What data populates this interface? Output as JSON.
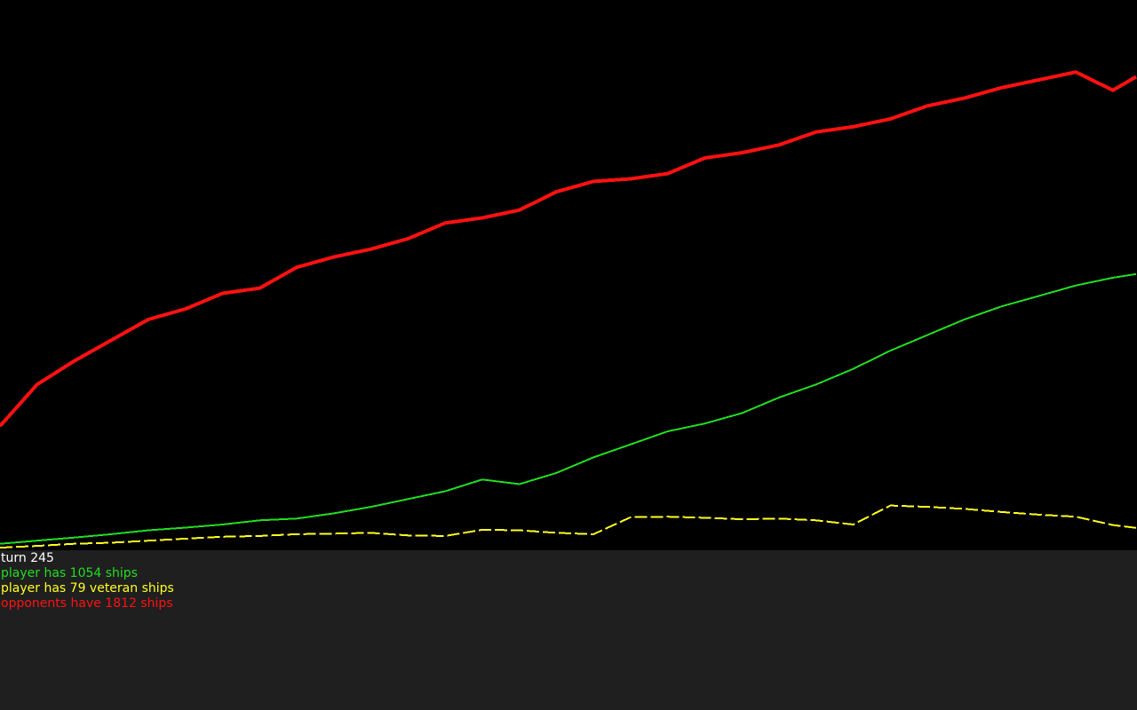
{
  "status": {
    "turn": "turn 245",
    "player_ships": "player has 1054 ships",
    "veteran_ships": "player has 79 veteran ships",
    "opponent_ships": "opponents have 1812 ships"
  },
  "colors": {
    "background": "#000000",
    "panel": "#1f1f1f",
    "turn_text": "#ffffff",
    "player": "#22dd22",
    "veteran": "#ffff22",
    "opponents": "#ff1111"
  },
  "chart_data": {
    "type": "line",
    "title": "",
    "xlabel": "",
    "ylabel": "",
    "x": [
      0,
      8,
      16,
      24,
      32,
      40,
      48,
      56,
      64,
      72,
      80,
      88,
      96,
      104,
      112,
      120,
      128,
      136,
      144,
      152,
      160,
      168,
      176,
      184,
      192,
      200,
      208,
      216,
      224,
      232,
      240,
      245
    ],
    "xlim": [
      0,
      245
    ],
    "ylim": [
      0,
      2100
    ],
    "grid": false,
    "legend": "none",
    "series": [
      {
        "key": "opponents",
        "values": [
          470,
          630,
          720,
          800,
          880,
          920,
          980,
          1000,
          1080,
          1120,
          1150,
          1190,
          1250,
          1270,
          1300,
          1370,
          1410,
          1420,
          1440,
          1500,
          1520,
          1550,
          1600,
          1620,
          1650,
          1700,
          1730,
          1770,
          1800,
          1830,
          1760,
          1812
        ]
      },
      {
        "key": "player",
        "values": [
          18,
          30,
          42,
          55,
          70,
          80,
          92,
          108,
          115,
          135,
          160,
          190,
          220,
          265,
          247,
          290,
          350,
          400,
          450,
          480,
          520,
          580,
          630,
          690,
          760,
          820,
          880,
          930,
          970,
          1010,
          1040,
          1054
        ]
      },
      {
        "key": "veteran",
        "values": [
          3,
          10,
          18,
          22,
          30,
          38,
          45,
          48,
          55,
          57,
          60,
          50,
          48,
          72,
          70,
          60,
          55,
          120,
          122,
          118,
          112,
          115,
          108,
          92,
          165,
          160,
          152,
          140,
          130,
          122,
          90,
          79
        ]
      }
    ]
  }
}
